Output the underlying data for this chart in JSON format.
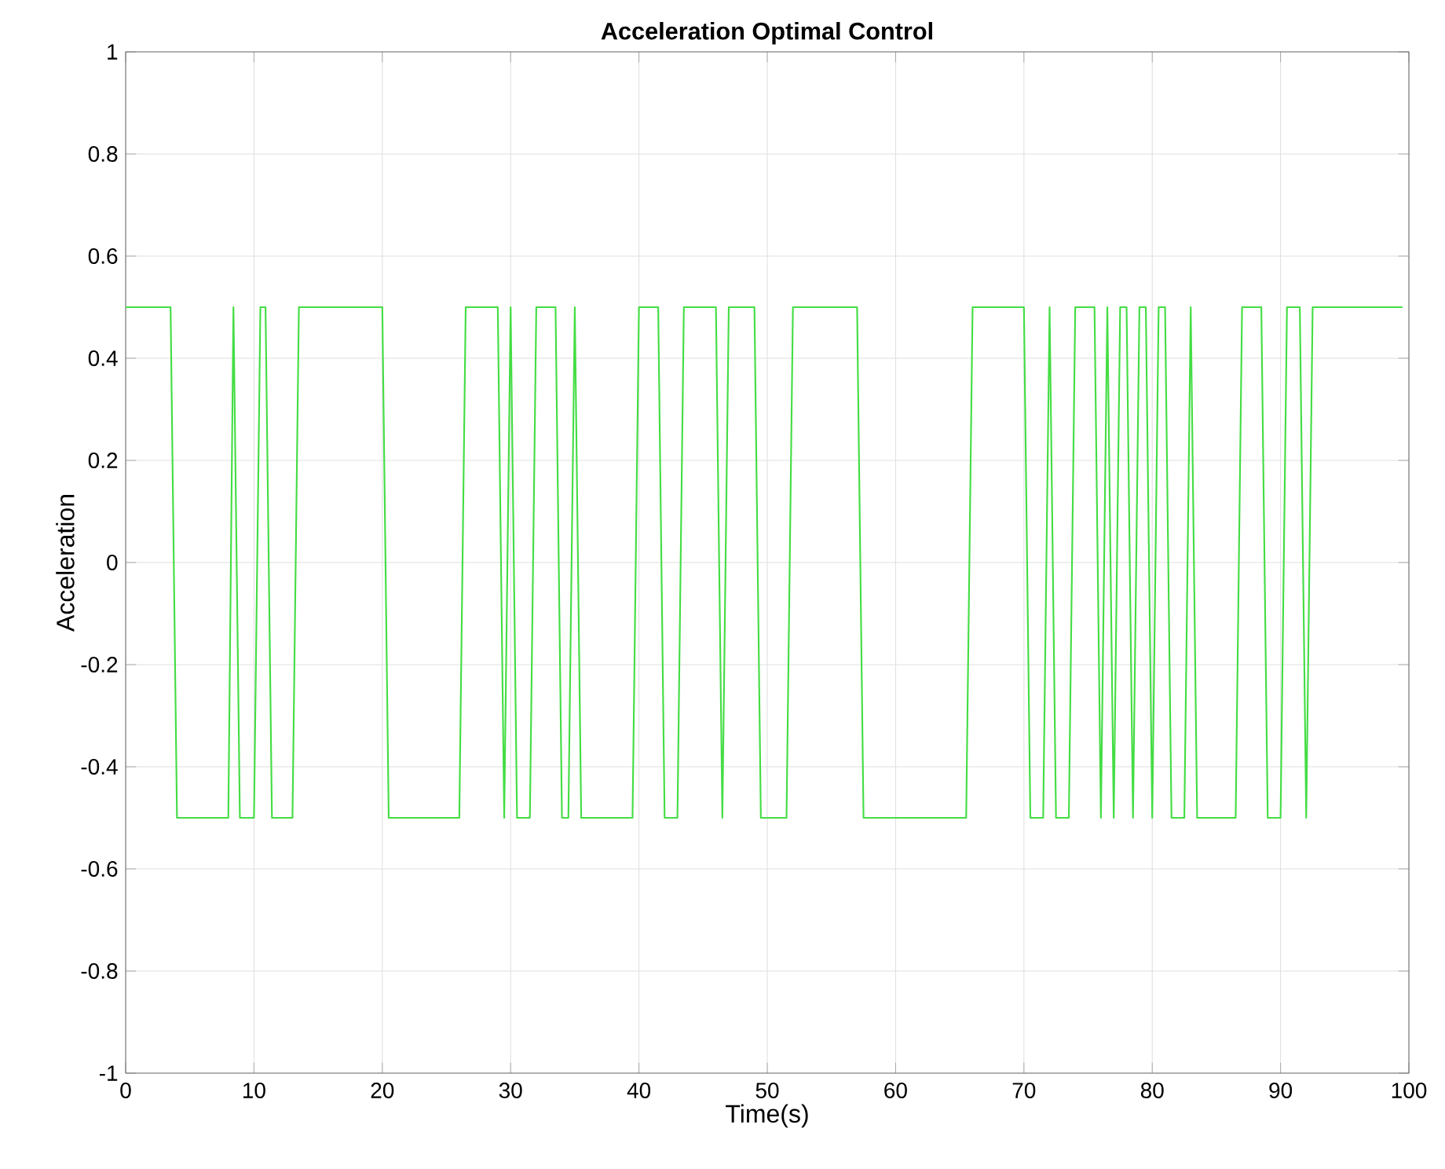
{
  "chart_data": {
    "type": "line",
    "title": "Acceleration Optimal Control",
    "xlabel": "Time(s)",
    "ylabel": "Acceleration",
    "x": [
      0,
      3.5,
      4.0,
      8.0,
      8.4,
      8.9,
      10.0,
      10.5,
      10.9,
      11.4,
      13.0,
      13.5,
      20.0,
      20.5,
      26.0,
      26.5,
      29.0,
      29.5,
      30.0,
      30.5,
      31.5,
      32.0,
      33.5,
      34.0,
      34.5,
      35.0,
      35.5,
      39.5,
      40.0,
      41.5,
      42.0,
      43.0,
      43.5,
      46.0,
      46.5,
      47.0,
      49.0,
      49.5,
      51.5,
      52.0,
      57.0,
      57.5,
      65.5,
      66.0,
      70.0,
      70.5,
      71.5,
      72.0,
      72.5,
      73.5,
      74.0,
      75.5,
      76.0,
      76.5,
      77.0,
      77.5,
      78.0,
      78.5,
      79.0,
      79.5,
      80.0,
      80.5,
      81.0,
      81.5,
      82.5,
      83.0,
      83.5,
      86.5,
      87.0,
      88.5,
      89.0,
      90.0,
      90.5,
      91.5,
      92.0,
      92.5,
      99.5
    ],
    "series": [
      {
        "color": "#44dd44",
        "values": [
          0.5,
          0.5,
          -0.5,
          -0.5,
          0.5,
          -0.5,
          -0.5,
          0.5,
          0.5,
          -0.5,
          -0.5,
          0.5,
          0.5,
          -0.5,
          -0.5,
          0.5,
          0.5,
          -0.5,
          0.5,
          -0.5,
          -0.5,
          0.5,
          0.5,
          -0.5,
          -0.5,
          0.5,
          -0.5,
          -0.5,
          0.5,
          0.5,
          -0.5,
          -0.5,
          0.5,
          0.5,
          -0.5,
          0.5,
          0.5,
          -0.5,
          -0.5,
          0.5,
          0.5,
          -0.5,
          -0.5,
          0.5,
          0.5,
          -0.5,
          -0.5,
          0.5,
          -0.5,
          -0.5,
          0.5,
          0.5,
          -0.5,
          0.5,
          -0.5,
          0.5,
          0.5,
          -0.5,
          0.5,
          0.5,
          -0.5,
          0.5,
          0.5,
          -0.5,
          -0.5,
          0.5,
          -0.5,
          -0.5,
          0.5,
          0.5,
          -0.5,
          -0.5,
          0.5,
          0.5,
          -0.5,
          0.5,
          0.5
        ]
      }
    ],
    "xlim": [
      0,
      100
    ],
    "ylim": [
      -1,
      1
    ],
    "xticks": [
      0,
      10,
      20,
      30,
      40,
      50,
      60,
      70,
      80,
      90,
      100
    ],
    "yticks": [
      -1,
      -0.8,
      -0.6,
      -0.4,
      -0.2,
      0,
      0.2,
      0.4,
      0.6,
      0.8,
      1
    ],
    "grid": true
  }
}
